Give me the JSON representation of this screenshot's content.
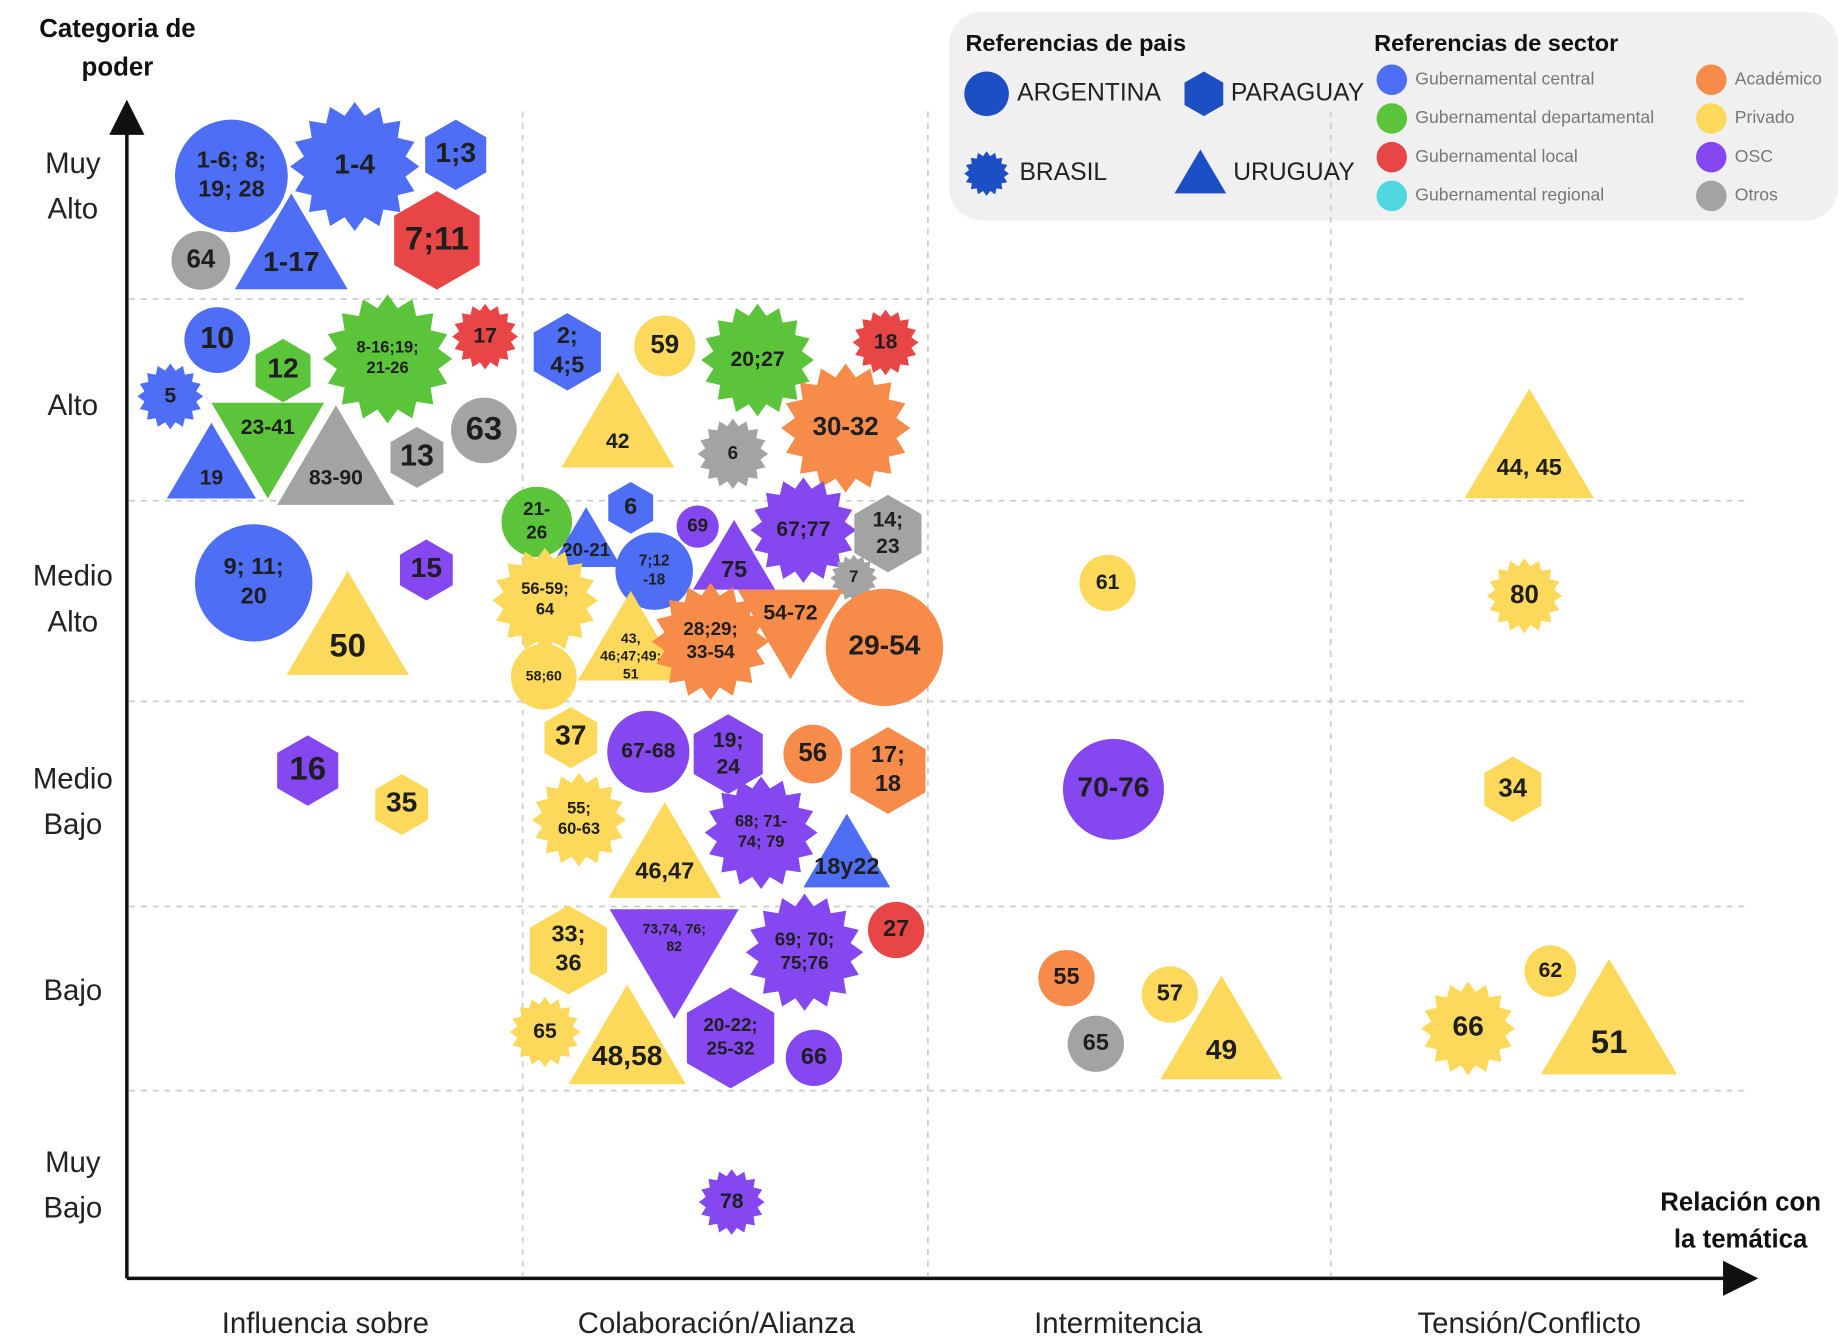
{
  "y_axis_title": [
    "Categoria de",
    "poder"
  ],
  "x_axis_title": [
    "Relación con",
    "la temática"
  ],
  "rows": [
    [
      "Muy",
      "Alto"
    ],
    [
      "Alto"
    ],
    [
      "Medio",
      "Alto"
    ],
    [
      "Medio",
      "Bajo"
    ],
    [
      "Bajo"
    ],
    [
      "Muy",
      "Bajo"
    ]
  ],
  "columns": [
    "Influencia sobre",
    "Colaboración/Alianza",
    "Intermitencia",
    "Tensión/Conflicto"
  ],
  "country_legend": {
    "title": "Referencias de pais",
    "items": [
      {
        "name": "ARGENTINA",
        "shape": "circle"
      },
      {
        "name": "PARAGUAY",
        "shape": "hexagon"
      },
      {
        "name": "BRASIL",
        "shape": "star"
      },
      {
        "name": "URUGUAY",
        "shape": "triangle"
      }
    ]
  },
  "sector_legend": {
    "title": "Referencias de sector",
    "items": [
      {
        "name": "Gubernamental central",
        "color": "#4d6ef5"
      },
      {
        "name": "Gubernamental departamental",
        "color": "#5cc43a"
      },
      {
        "name": "Gubernamental local",
        "color": "#e84646"
      },
      {
        "name": "Gubernamental regional",
        "color": "#4fd8e0"
      },
      {
        "name": "Académico",
        "color": "#f68b4a"
      },
      {
        "name": "Privado",
        "color": "#fcd95a"
      },
      {
        "name": "OSC",
        "color": "#8447f0"
      },
      {
        "name": "Otros",
        "color": "#a3a3a3"
      }
    ]
  },
  "nodes": [
    {
      "label": [
        "1-6; 8;",
        "19; 28"
      ],
      "country": "ARGENTINA",
      "sector": "Gubernamental central"
    },
    {
      "label": [
        "1-4"
      ],
      "country": "BRASIL",
      "sector": "Gubernamental central"
    },
    {
      "label": [
        "1;3"
      ],
      "country": "PARAGUAY",
      "sector": "Gubernamental central"
    },
    {
      "label": [
        "1-17"
      ],
      "country": "URUGUAY",
      "sector": "Gubernamental central"
    },
    {
      "label": [
        "64"
      ],
      "country": "ARGENTINA",
      "sector": "Otros"
    },
    {
      "label": [
        "7;11"
      ],
      "country": "PARAGUAY",
      "sector": "Gubernamental local"
    },
    {
      "label": [
        "10"
      ],
      "country": "ARGENTINA",
      "sector": "Gubernamental central"
    },
    {
      "label": [
        "12"
      ],
      "country": "PARAGUAY",
      "sector": "Gubernamental departamental"
    },
    {
      "label": [
        "8-16;19;",
        "21-26"
      ],
      "country": "BRASIL",
      "sector": "Gubernamental departamental"
    },
    {
      "label": [
        "17"
      ],
      "country": "BRASIL",
      "sector": "Gubernamental local"
    },
    {
      "label": [
        "5"
      ],
      "country": "BRASIL",
      "sector": "Gubernamental central"
    },
    {
      "label": [
        "23-41"
      ],
      "country": "URUGUAY",
      "sector": "Gubernamental departamental"
    },
    {
      "label": [
        "83-90"
      ],
      "country": "URUGUAY",
      "sector": "Otros"
    },
    {
      "label": [
        "19"
      ],
      "country": "URUGUAY",
      "sector": "Gubernamental central"
    },
    {
      "label": [
        "13"
      ],
      "country": "PARAGUAY",
      "sector": "Otros"
    },
    {
      "label": [
        "63"
      ],
      "country": "ARGENTINA",
      "sector": "Otros"
    },
    {
      "label": [
        "9; 11;",
        "20"
      ],
      "country": "ARGENTINA",
      "sector": "Gubernamental central"
    },
    {
      "label": [
        "15"
      ],
      "country": "PARAGUAY",
      "sector": "OSC"
    },
    {
      "label": [
        "50"
      ],
      "country": "URUGUAY",
      "sector": "Privado"
    },
    {
      "label": [
        "16"
      ],
      "country": "PARAGUAY",
      "sector": "OSC"
    },
    {
      "label": [
        "35"
      ],
      "country": "PARAGUAY",
      "sector": "Privado"
    },
    {
      "label": [
        "2;",
        "4;5"
      ],
      "country": "PARAGUAY",
      "sector": "Gubernamental central"
    },
    {
      "label": [
        "59"
      ],
      "country": "ARGENTINA",
      "sector": "Privado"
    },
    {
      "label": [
        "20;27"
      ],
      "country": "BRASIL",
      "sector": "Gubernamental departamental"
    },
    {
      "label": [
        "18"
      ],
      "country": "BRASIL",
      "sector": "Gubernamental local"
    },
    {
      "label": [
        "42"
      ],
      "country": "URUGUAY",
      "sector": "Privado"
    },
    {
      "label": [
        "6"
      ],
      "country": "BRASIL",
      "sector": "Otros"
    },
    {
      "label": [
        "30-32"
      ],
      "country": "BRASIL",
      "sector": "Académico"
    },
    {
      "label": [
        "21-",
        "26"
      ],
      "country": "ARGENTINA",
      "sector": "Gubernamental departamental"
    },
    {
      "label": [
        "20-21"
      ],
      "country": "URUGUAY",
      "sector": "Gubernamental central"
    },
    {
      "label": [
        "6"
      ],
      "country": "PARAGUAY",
      "sector": "Gubernamental central"
    },
    {
      "label": [
        "7;12",
        "-18"
      ],
      "country": "ARGENTINA",
      "sector": "Gubernamental central"
    },
    {
      "label": [
        "69"
      ],
      "country": "ARGENTINA",
      "sector": "OSC"
    },
    {
      "label": [
        "75"
      ],
      "country": "URUGUAY",
      "sector": "OSC"
    },
    {
      "label": [
        "67;77"
      ],
      "country": "BRASIL",
      "sector": "OSC"
    },
    {
      "label": [
        "14;",
        "23"
      ],
      "country": "PARAGUAY",
      "sector": "Otros"
    },
    {
      "label": [
        "7"
      ],
      "country": "BRASIL",
      "sector": "Otros"
    },
    {
      "label": [
        "56-59;",
        "64"
      ],
      "country": "BRASIL",
      "sector": "Privado"
    },
    {
      "label": [
        "43,",
        "46;47;49;",
        "51"
      ],
      "country": "URUGUAY",
      "sector": "Privado"
    },
    {
      "label": [
        "58;60"
      ],
      "country": "ARGENTINA",
      "sector": "Privado"
    },
    {
      "label": [
        "28;29;",
        "33-54"
      ],
      "country": "BRASIL",
      "sector": "Académico"
    },
    {
      "label": [
        "54-72"
      ],
      "country": "URUGUAY",
      "sector": "Académico"
    },
    {
      "label": [
        "29-54"
      ],
      "country": "ARGENTINA",
      "sector": "Académico"
    },
    {
      "label": [
        "37"
      ],
      "country": "PARAGUAY",
      "sector": "Privado"
    },
    {
      "label": [
        "67-68"
      ],
      "country": "ARGENTINA",
      "sector": "OSC"
    },
    {
      "label": [
        "19;",
        "24"
      ],
      "country": "PARAGUAY",
      "sector": "OSC"
    },
    {
      "label": [
        "56"
      ],
      "country": "ARGENTINA",
      "sector": "Académico"
    },
    {
      "label": [
        "17;",
        "18"
      ],
      "country": "PARAGUAY",
      "sector": "Académico"
    },
    {
      "label": [
        "55;",
        "60-63"
      ],
      "country": "BRASIL",
      "sector": "Privado"
    },
    {
      "label": [
        "46,47"
      ],
      "country": "URUGUAY",
      "sector": "Privado"
    },
    {
      "label": [
        "68; 71-",
        "74; 79"
      ],
      "country": "BRASIL",
      "sector": "OSC"
    },
    {
      "label": [
        "18y22"
      ],
      "country": "URUGUAY",
      "sector": "Gubernamental central"
    },
    {
      "label": [
        "33;",
        "36"
      ],
      "country": "PARAGUAY",
      "sector": "Privado"
    },
    {
      "label": [
        "73,74, 76;",
        "82"
      ],
      "country": "URUGUAY",
      "sector": "OSC"
    },
    {
      "label": [
        "69; 70;",
        "75;76"
      ],
      "country": "BRASIL",
      "sector": "OSC"
    },
    {
      "label": [
        "27"
      ],
      "country": "ARGENTINA",
      "sector": "Gubernamental local"
    },
    {
      "label": [
        "65"
      ],
      "country": "BRASIL",
      "sector": "Privado"
    },
    {
      "label": [
        "48,58"
      ],
      "country": "URUGUAY",
      "sector": "Privado"
    },
    {
      "label": [
        "20-22;",
        "25-32"
      ],
      "country": "PARAGUAY",
      "sector": "OSC"
    },
    {
      "label": [
        "66"
      ],
      "country": "ARGENTINA",
      "sector": "OSC"
    },
    {
      "label": [
        "78"
      ],
      "country": "BRASIL",
      "sector": "OSC"
    },
    {
      "label": [
        "61"
      ],
      "country": "ARGENTINA",
      "sector": "Privado"
    },
    {
      "label": [
        "70-76"
      ],
      "country": "ARGENTINA",
      "sector": "OSC"
    },
    {
      "label": [
        "55"
      ],
      "country": "ARGENTINA",
      "sector": "Académico"
    },
    {
      "label": [
        "57"
      ],
      "country": "ARGENTINA",
      "sector": "Privado"
    },
    {
      "label": [
        "65"
      ],
      "country": "ARGENTINA",
      "sector": "Otros"
    },
    {
      "label": [
        "49"
      ],
      "country": "URUGUAY",
      "sector": "Privado"
    },
    {
      "label": [
        "44, 45"
      ],
      "country": "URUGUAY",
      "sector": "Privado"
    },
    {
      "label": [
        "80"
      ],
      "country": "BRASIL",
      "sector": "Privado"
    },
    {
      "label": [
        "34"
      ],
      "country": "PARAGUAY",
      "sector": "Privado"
    },
    {
      "label": [
        "62"
      ],
      "country": "ARGENTINA",
      "sector": "Privado"
    },
    {
      "label": [
        "66"
      ],
      "country": "BRASIL",
      "sector": "Privado"
    },
    {
      "label": [
        "51"
      ],
      "country": "URUGUAY",
      "sector": "Privado"
    }
  ]
}
